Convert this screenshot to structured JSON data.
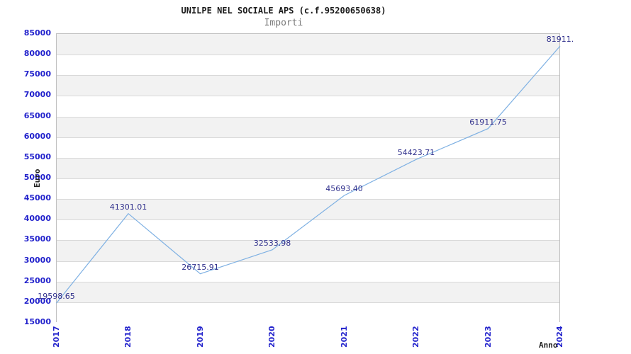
{
  "chart": {
    "title": "UNILPE NEL SOCIALE APS (c.f.95200650638)",
    "subtitle": "Importi"
  },
  "chart_data": {
    "type": "line",
    "title": "UNILPE NEL SOCIALE APS (c.f.95200650638)",
    "subtitle": "Importi",
    "xlabel": "Anno",
    "ylabel": "Euro",
    "x": [
      "2017",
      "2018",
      "2019",
      "2020",
      "2021",
      "2022",
      "2023",
      "2024"
    ],
    "values": [
      19598.65,
      41301.01,
      26715.91,
      32533.98,
      45693.4,
      54423.71,
      61911.75,
      81911
    ],
    "point_labels": [
      "19598.65",
      "41301.01",
      "26715.91",
      "32533.98",
      "45693.40",
      "54423.71",
      "61911.75",
      "81911."
    ],
    "ylim": [
      15000,
      85000
    ],
    "ytick_step": 5000,
    "ytick_labels": [
      "15000",
      "20000",
      "25000",
      "30000",
      "35000",
      "40000",
      "45000",
      "50000",
      "55000",
      "60000",
      "65000",
      "70000",
      "75000",
      "80000",
      "85000"
    ],
    "grid": "alternating-horizontal-bands",
    "legend": "none",
    "colors": {
      "line": "#7fb1e3",
      "tick_label": "#2222cc",
      "point_label": "#30308c",
      "band_gray": "#f2f2f2",
      "band_white": "#ffffff",
      "grid_line": "#d9d9d9",
      "plot_border": "#c0c0c0",
      "title": "#1a1a1a",
      "subtitle": "#7a7a7a"
    }
  }
}
